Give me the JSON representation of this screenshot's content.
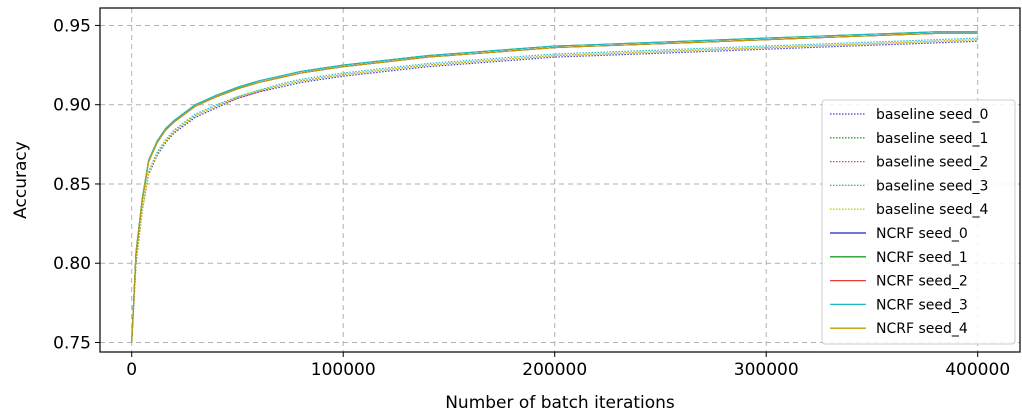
{
  "chart_data": {
    "type": "line",
    "xlabel": "Number of batch iterations",
    "ylabel": "Accuracy",
    "xlim": [
      -15000,
      420000
    ],
    "ylim": [
      0.744,
      0.961
    ],
    "xticks": [
      0,
      100000,
      200000,
      300000,
      400000
    ],
    "xtick_labels": [
      "0",
      "100000",
      "200000",
      "300000",
      "400000"
    ],
    "yticks": [
      0.75,
      0.8,
      0.85,
      0.9,
      0.95
    ],
    "ytick_labels": [
      "0.75",
      "0.80",
      "0.85",
      "0.90",
      "0.95"
    ],
    "grid": true,
    "legend_position": "right",
    "x": [
      0,
      2000,
      5000,
      8000,
      12000,
      16000,
      20000,
      25000,
      30000,
      40000,
      50000,
      60000,
      70000,
      80000,
      90000,
      100000,
      120000,
      140000,
      160000,
      180000,
      200000,
      220000,
      240000,
      260000,
      280000,
      300000,
      320000,
      340000,
      360000,
      380000,
      400000
    ],
    "series": [
      {
        "name": "baseline seed_0",
        "style": "dotted",
        "color": "#3b3bd1",
        "values": [
          0.75,
          0.8,
          0.833,
          0.856,
          0.868,
          0.876,
          0.882,
          0.887,
          0.892,
          0.898,
          0.904,
          0.908,
          0.911,
          0.914,
          0.916,
          0.918,
          0.921,
          0.924,
          0.926,
          0.928,
          0.93,
          0.931,
          0.932,
          0.933,
          0.934,
          0.935,
          0.936,
          0.937,
          0.938,
          0.939,
          0.94
        ]
      },
      {
        "name": "baseline seed_1",
        "style": "dotted",
        "color": "#2ca02c",
        "values": [
          0.75,
          0.801,
          0.834,
          0.857,
          0.869,
          0.877,
          0.883,
          0.888,
          0.893,
          0.899,
          0.905,
          0.909,
          0.912,
          0.915,
          0.917,
          0.919,
          0.922,
          0.925,
          0.927,
          0.929,
          0.931,
          0.932,
          0.933,
          0.934,
          0.935,
          0.936,
          0.937,
          0.938,
          0.939,
          0.94,
          0.941
        ]
      },
      {
        "name": "baseline seed_2",
        "style": "dotted",
        "color": "#e8433c",
        "values": [
          0.75,
          0.8,
          0.834,
          0.857,
          0.869,
          0.877,
          0.883,
          0.888,
          0.893,
          0.899,
          0.904,
          0.908,
          0.912,
          0.915,
          0.917,
          0.919,
          0.922,
          0.925,
          0.927,
          0.929,
          0.931,
          0.932,
          0.933,
          0.934,
          0.935,
          0.936,
          0.937,
          0.938,
          0.939,
          0.94,
          0.941
        ]
      },
      {
        "name": "baseline seed_3",
        "style": "dotted",
        "color": "#17becf",
        "values": [
          0.75,
          0.802,
          0.835,
          0.858,
          0.87,
          0.878,
          0.884,
          0.889,
          0.894,
          0.9,
          0.905,
          0.909,
          0.913,
          0.916,
          0.918,
          0.92,
          0.923,
          0.926,
          0.928,
          0.93,
          0.932,
          0.933,
          0.934,
          0.935,
          0.936,
          0.937,
          0.938,
          0.939,
          0.94,
          0.941,
          0.942
        ]
      },
      {
        "name": "baseline seed_4",
        "style": "dotted",
        "color": "#c8c800",
        "values": [
          0.75,
          0.801,
          0.834,
          0.857,
          0.869,
          0.877,
          0.883,
          0.888,
          0.893,
          0.899,
          0.905,
          0.909,
          0.912,
          0.915,
          0.917,
          0.919,
          0.922,
          0.925,
          0.927,
          0.929,
          0.931,
          0.932,
          0.933,
          0.934,
          0.935,
          0.936,
          0.937,
          0.938,
          0.939,
          0.94,
          0.941
        ]
      },
      {
        "name": "NCRF seed_0",
        "style": "solid",
        "color": "#1f1fbf",
        "values": [
          0.75,
          0.806,
          0.84,
          0.864,
          0.876,
          0.884,
          0.889,
          0.894,
          0.899,
          0.905,
          0.91,
          0.914,
          0.917,
          0.92,
          0.922,
          0.924,
          0.927,
          0.93,
          0.932,
          0.934,
          0.936,
          0.937,
          0.938,
          0.939,
          0.94,
          0.941,
          0.942,
          0.943,
          0.944,
          0.945,
          0.945
        ]
      },
      {
        "name": "NCRF seed_1",
        "style": "solid",
        "color": "#1f9f1f",
        "values": [
          0.75,
          0.807,
          0.841,
          0.865,
          0.877,
          0.885,
          0.89,
          0.895,
          0.9,
          0.906,
          0.911,
          0.915,
          0.918,
          0.921,
          0.923,
          0.925,
          0.928,
          0.931,
          0.933,
          0.935,
          0.937,
          0.938,
          0.939,
          0.94,
          0.941,
          0.942,
          0.943,
          0.944,
          0.945,
          0.946,
          0.946
        ]
      },
      {
        "name": "NCRF seed_2",
        "style": "solid",
        "color": "#e83a3a",
        "values": [
          0.75,
          0.806,
          0.84,
          0.864,
          0.876,
          0.884,
          0.889,
          0.894,
          0.899,
          0.905,
          0.91,
          0.914,
          0.917,
          0.92,
          0.922,
          0.924,
          0.927,
          0.93,
          0.932,
          0.934,
          0.936,
          0.937,
          0.938,
          0.939,
          0.94,
          0.941,
          0.942,
          0.943,
          0.944,
          0.945,
          0.945
        ]
      },
      {
        "name": "NCRF seed_3",
        "style": "solid",
        "color": "#17b8c8",
        "values": [
          0.75,
          0.807,
          0.841,
          0.865,
          0.877,
          0.885,
          0.89,
          0.895,
          0.9,
          0.906,
          0.911,
          0.915,
          0.918,
          0.921,
          0.923,
          0.925,
          0.928,
          0.931,
          0.933,
          0.935,
          0.937,
          0.938,
          0.939,
          0.94,
          0.941,
          0.942,
          0.943,
          0.944,
          0.945,
          0.946,
          0.946
        ]
      },
      {
        "name": "NCRF seed_4",
        "style": "solid",
        "color": "#bfa000",
        "values": [
          0.75,
          0.806,
          0.84,
          0.864,
          0.876,
          0.884,
          0.889,
          0.894,
          0.899,
          0.905,
          0.91,
          0.914,
          0.917,
          0.92,
          0.922,
          0.924,
          0.927,
          0.93,
          0.932,
          0.934,
          0.936,
          0.937,
          0.938,
          0.939,
          0.94,
          0.941,
          0.942,
          0.943,
          0.944,
          0.945,
          0.945
        ]
      }
    ]
  }
}
